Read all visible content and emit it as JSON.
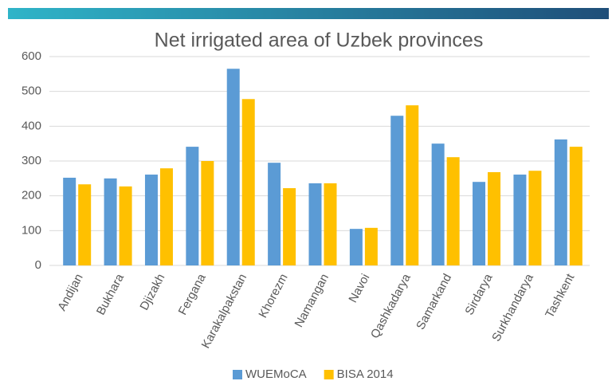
{
  "chart_data": {
    "type": "bar",
    "title": "Net irrigated area of Uzbek provinces",
    "categories": [
      "Andijan",
      "Bukhara",
      "Djizakh",
      "Fergana",
      "Karakalpakstan",
      "Khorezm",
      "Namangan",
      "Navoi",
      "Qashkadarya",
      "Samarkand",
      "Sirdarya",
      "Surkhandarya",
      "Tashkent"
    ],
    "series": [
      {
        "name": "WUEMoCA",
        "color": "#5b9bd5",
        "values": [
          252,
          250,
          261,
          341,
          565,
          295,
          236,
          105,
          430,
          350,
          240,
          261,
          362
        ]
      },
      {
        "name": "BISA 2014",
        "color": "#ffc000",
        "values": [
          233,
          227,
          279,
          300,
          478,
          222,
          236,
          108,
          460,
          311,
          268,
          272,
          341
        ]
      }
    ],
    "ylim": [
      0,
      600
    ],
    "yticks": [
      0,
      100,
      200,
      300,
      400,
      500,
      600
    ],
    "grid": true,
    "legend": "bottom"
  }
}
